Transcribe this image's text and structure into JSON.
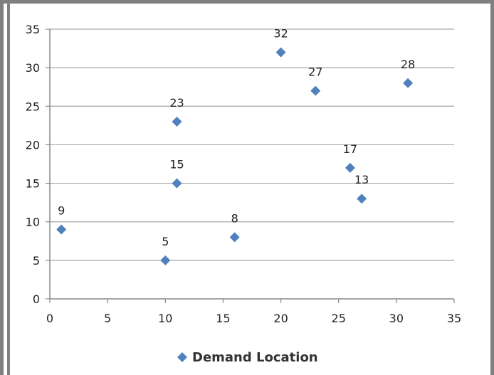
{
  "chart_data": {
    "type": "scatter",
    "title": "",
    "xlabel": "",
    "ylabel": "",
    "xlim": [
      0,
      35
    ],
    "ylim": [
      0,
      35
    ],
    "x_ticks": [
      "0",
      "5",
      "10",
      "15",
      "20",
      "25",
      "30",
      "35"
    ],
    "y_ticks": [
      "0",
      "5",
      "10",
      "15",
      "20",
      "25",
      "30",
      "35"
    ],
    "grid": "horizontal",
    "legend_position": "bottom",
    "marker_color": "#4f81bd",
    "series": [
      {
        "name": "Demand Location",
        "points": [
          {
            "x": 1,
            "y": 9,
            "label": "9"
          },
          {
            "x": 10,
            "y": 5,
            "label": "5"
          },
          {
            "x": 11,
            "y": 15,
            "label": "15"
          },
          {
            "x": 11,
            "y": 23,
            "label": "23"
          },
          {
            "x": 16,
            "y": 8,
            "label": "8"
          },
          {
            "x": 20,
            "y": 32,
            "label": "32"
          },
          {
            "x": 23,
            "y": 27,
            "label": "27"
          },
          {
            "x": 26,
            "y": 17,
            "label": "17"
          },
          {
            "x": 27,
            "y": 13,
            "label": "13"
          },
          {
            "x": 31,
            "y": 28,
            "label": "28"
          }
        ]
      }
    ]
  }
}
